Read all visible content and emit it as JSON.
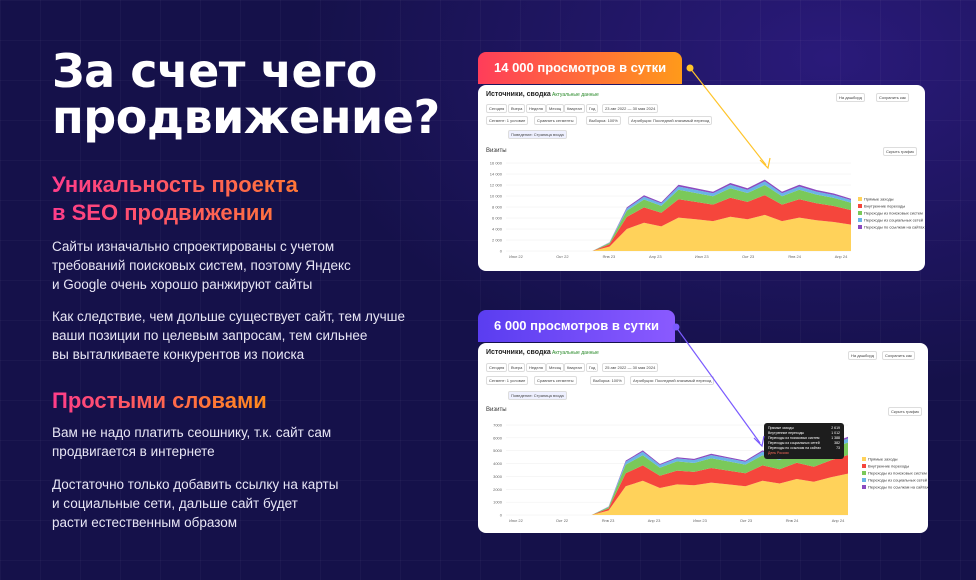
{
  "title": "За счет чего продвижение?",
  "title_line1": "За счет чего",
  "title_line2": "продвижение?",
  "section1": {
    "heading_line1": "Уникальность проекта",
    "heading_line2": "в SEO продвижении",
    "para1": [
      "Сайты изначально спроектированы с учетом",
      "требований поисковых систем, поэтому Яндекс",
      "и Google очень хорошо ранжируют сайты"
    ],
    "para2": [
      "Как следствие, чем дольше существует сайт, тем лучше",
      "ваши позиции по целевым запросам, тем сильнее",
      "вы выталкиваете конкурентов из поиска"
    ]
  },
  "section2": {
    "heading": "Простыми словами",
    "para1": [
      "Вам не надо платить сеошнику, т.к. сайт сам",
      "продвигается в интернете"
    ],
    "para2": [
      "Достаточно только добавить ссылку на карты",
      "и социальные сети, дальше сайт будет",
      "расти естественным образом"
    ]
  },
  "badge1": "14 000 просмотров в сутки",
  "badge2": "6 000 просмотров в сутки",
  "report": {
    "title": "Источники, сводка",
    "tag": "Актуальные данные",
    "tabs": [
      "Сегодня",
      "Вчера",
      "Неделя",
      "Месяц",
      "Квартал",
      "Год"
    ],
    "date_range1": "23 авг 2022 — 30 мая 2024",
    "date_range2": "25 авг 2022 — 30 мая 2024",
    "visits_label": "Визиты",
    "hide_graph": "Скрыть график",
    "segment": "Сегмент: 1 условие",
    "compare": "Сравнить сегменты",
    "sample": "Выборка: 100%",
    "attribution": "Атрибуция: Последний значимый переход",
    "goal": "Поведение: Страница входа",
    "save": "Сохранить как",
    "dashboard": "На дашборд"
  },
  "legend": [
    "Прямые заходы",
    "Внутренние переходы",
    "Переходы из поисковых систем",
    "Переходы из социальных сетей",
    "Переходы по ссылкам на сайтах"
  ],
  "colors": {
    "yellow": "#ffd25a",
    "red": "#f5463c",
    "green": "#7ac95a",
    "blue": "#6ab4e6",
    "purple": "#8a4ac0"
  },
  "chart1_yticks": [
    "0",
    "2 000",
    "4 000",
    "6 000",
    "8 000",
    "10 000",
    "12 000",
    "14 000",
    "16 000"
  ],
  "chart1_xticks": [
    "Июл 22",
    "Окт 22",
    "Янв 23",
    "Апр 23",
    "Июл 23",
    "Окт 23",
    "Янв 24",
    "Апр 24"
  ],
  "chart2_yticks": [
    "0",
    "1000",
    "2000",
    "3000",
    "4000",
    "5000",
    "6000",
    "7000"
  ],
  "chart2_xticks": [
    "Июл 22",
    "Окт 22",
    "Янв 23",
    "Апр 23",
    "Июл 23",
    "Окт 23",
    "Янв 24",
    "Апр 24"
  ],
  "tooltip": {
    "rows": [
      [
        "Прямые заходы",
        "2 619"
      ],
      [
        "Внутренние переходы",
        "1 012"
      ],
      [
        "Переходы из поисковых систем",
        "1 388"
      ],
      [
        "Переходы из социальных сетей",
        "382"
      ],
      [
        "Переходы по ссылкам на сайтах",
        "73"
      ]
    ],
    "event": "День России"
  }
}
